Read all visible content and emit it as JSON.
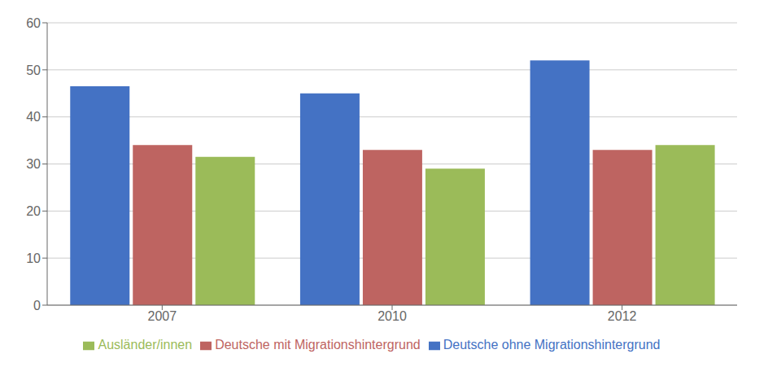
{
  "chart_data": {
    "type": "bar",
    "categories": [
      "2007",
      "2010",
      "2012"
    ],
    "series": [
      {
        "name": "Deutsche ohne Migrationshintergrund",
        "color": "#4472C4",
        "values": [
          46.5,
          45.0,
          52.0
        ]
      },
      {
        "name": "Deutsche mit Migrationshintergrund",
        "color": "#BE6461",
        "values": [
          34.0,
          33.0,
          33.0
        ]
      },
      {
        "name": "Ausländer/innen",
        "color": "#9BBB59",
        "values": [
          31.5,
          29.0,
          34.0
        ]
      }
    ],
    "ylim": [
      0,
      60
    ],
    "yticks": [
      0,
      10,
      20,
      30,
      40,
      50,
      60
    ],
    "grid": true,
    "legend": "bottom"
  }
}
